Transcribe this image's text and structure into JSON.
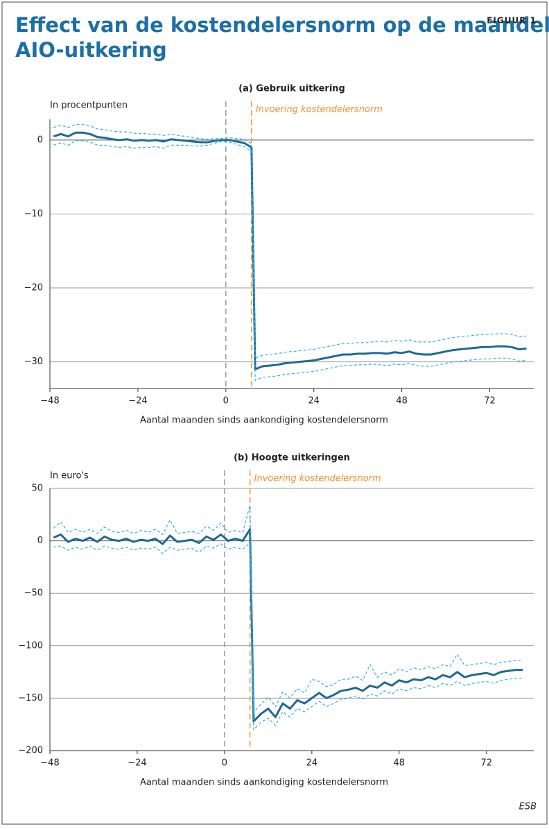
{
  "header": {
    "title": "Effect van de kostendelersnorm op de maandelijkse AIO-uitkering",
    "figure_label": "FIGUUR 1"
  },
  "chart_data": [
    {
      "type": "line",
      "title": "(a) Gebruik uitkering",
      "y_label": "In procentpunten",
      "x_label": "Aantal maanden sinds aankondiging kostendelersnorm",
      "xlim": [
        -48,
        84
      ],
      "xticks": [
        {
          "value": -48,
          "label": "−48"
        },
        {
          "value": -24,
          "label": "−24"
        },
        0,
        24,
        48,
        72
      ],
      "ylim": [
        -33.6,
        2.8
      ],
      "yticks": [
        {
          "value": -30,
          "label": "−30"
        },
        {
          "value": -20,
          "label": "−20"
        },
        {
          "value": -10,
          "label": "−10"
        },
        0
      ],
      "grid": true,
      "vlines": [
        {
          "x": 0,
          "color": "#999999"
        },
        {
          "x": 7,
          "color": "#f0912a",
          "label": "Invoering kostendelersnorm"
        }
      ],
      "x": [
        -47,
        -45,
        -43,
        -41,
        -39,
        -37,
        -35,
        -33,
        -31,
        -29,
        -27,
        -25,
        -23,
        -21,
        -19,
        -17,
        -15,
        -13,
        -11,
        -9,
        -7,
        -5,
        -3,
        -1,
        1,
        3,
        5,
        7,
        8,
        10,
        12,
        14,
        16,
        18,
        20,
        22,
        24,
        26,
        28,
        30,
        32,
        34,
        36,
        38,
        40,
        42,
        44,
        46,
        48,
        50,
        52,
        54,
        56,
        58,
        60,
        62,
        64,
        66,
        68,
        70,
        72,
        74,
        76,
        78,
        80,
        82
      ],
      "series": [
        {
          "color": "#1e6a93",
          "style": "solid",
          "values": [
            0.5,
            0.8,
            0.5,
            1.0,
            1.0,
            0.8,
            0.4,
            0.3,
            0.1,
            0.0,
            0.1,
            -0.1,
            0.0,
            -0.1,
            0.0,
            -0.2,
            0.1,
            0.0,
            -0.1,
            -0.2,
            -0.3,
            -0.3,
            -0.1,
            0.0,
            0.0,
            -0.2,
            -0.4,
            -1.0,
            -31.0,
            -30.6,
            -30.5,
            -30.4,
            -30.2,
            -30.1,
            -30.0,
            -29.9,
            -29.8,
            -29.6,
            -29.4,
            -29.2,
            -29.0,
            -29.0,
            -28.9,
            -28.9,
            -28.8,
            -28.8,
            -28.9,
            -28.7,
            -28.8,
            -28.6,
            -28.9,
            -29.0,
            -29.0,
            -28.8,
            -28.6,
            -28.4,
            -28.3,
            -28.2,
            -28.1,
            -28.0,
            -28.0,
            -27.9,
            -27.9,
            -28.0,
            -28.3,
            -28.2
          ]
        },
        {
          "color": "#2bb0e3",
          "style": "dashed",
          "values": [
            1.7,
            2.0,
            1.7,
            2.1,
            2.1,
            1.9,
            1.5,
            1.4,
            1.2,
            1.1,
            1.1,
            0.9,
            0.9,
            0.8,
            0.8,
            0.6,
            0.8,
            0.6,
            0.5,
            0.3,
            0.2,
            0.1,
            0.2,
            0.2,
            0.3,
            0.2,
            0.1,
            -0.5,
            -29.5,
            -29.1,
            -29.0,
            -28.9,
            -28.7,
            -28.6,
            -28.5,
            -28.4,
            -28.3,
            -28.1,
            -27.9,
            -27.7,
            -27.5,
            -27.5,
            -27.4,
            -27.4,
            -27.3,
            -27.2,
            -27.3,
            -27.1,
            -27.2,
            -27.0,
            -27.3,
            -27.3,
            -27.3,
            -27.1,
            -26.9,
            -26.7,
            -26.6,
            -26.5,
            -26.4,
            -26.3,
            -26.3,
            -26.2,
            -26.2,
            -26.3,
            -26.6,
            -26.5
          ]
        },
        {
          "color": "#2bb0e3",
          "style": "dashed",
          "values": [
            -0.7,
            -0.4,
            -0.7,
            -0.1,
            -0.1,
            -0.3,
            -0.7,
            -0.7,
            -0.9,
            -1.0,
            -0.9,
            -1.1,
            -1.0,
            -1.0,
            -0.9,
            -1.1,
            -0.7,
            -0.7,
            -0.7,
            -0.8,
            -0.8,
            -0.7,
            -0.4,
            -0.2,
            -0.3,
            -0.6,
            -0.9,
            -1.5,
            -32.5,
            -32.1,
            -32.0,
            -31.9,
            -31.7,
            -31.6,
            -31.5,
            -31.4,
            -31.3,
            -31.1,
            -30.9,
            -30.7,
            -30.5,
            -30.5,
            -30.4,
            -30.4,
            -30.3,
            -30.4,
            -30.5,
            -30.3,
            -30.4,
            -30.2,
            -30.5,
            -30.6,
            -30.6,
            -30.4,
            -30.2,
            -30.0,
            -29.9,
            -29.8,
            -29.7,
            -29.6,
            -29.6,
            -29.5,
            -29.5,
            -29.6,
            -29.9,
            -29.8
          ]
        }
      ]
    },
    {
      "type": "line",
      "title": "(b) Hoogte uitkeringen",
      "y_label": "In euro's",
      "x_label": "Aantal maanden sinds aankondiging kostendelersnorm",
      "xlim": [
        -48,
        85
      ],
      "xticks": [
        {
          "value": -48,
          "label": "−48"
        },
        {
          "value": -24,
          "label": "−24"
        },
        0,
        24,
        48,
        72
      ],
      "ylim": [
        -200,
        50
      ],
      "yticks": [
        {
          "value": -200,
          "label": "−200"
        },
        {
          "value": -150,
          "label": "−150"
        },
        {
          "value": -100,
          "label": "−100"
        },
        {
          "value": -50,
          "label": "−50"
        },
        0,
        50
      ],
      "grid": true,
      "vlines": [
        {
          "x": 0,
          "color": "#999999"
        },
        {
          "x": 7,
          "color": "#f0912a",
          "label": "Invoering kostendelersnorm"
        }
      ],
      "x": [
        -47,
        -45,
        -43,
        -41,
        -39,
        -37,
        -35,
        -33,
        -31,
        -29,
        -27,
        -25,
        -23,
        -21,
        -19,
        -17,
        -15,
        -13,
        -11,
        -9,
        -7,
        -5,
        -3,
        -1,
        1,
        3,
        5,
        7,
        8,
        10,
        12,
        14,
        16,
        18,
        20,
        22,
        24,
        26,
        28,
        30,
        32,
        34,
        36,
        38,
        40,
        42,
        44,
        46,
        48,
        50,
        52,
        54,
        56,
        58,
        60,
        62,
        64,
        66,
        68,
        70,
        72,
        74,
        76,
        78,
        80,
        82
      ],
      "series": [
        {
          "color": "#1e6a93",
          "style": "solid",
          "values": [
            3,
            6,
            -1,
            2,
            0,
            3,
            -1,
            4,
            1,
            0,
            2,
            -1,
            1,
            0,
            2,
            -3,
            5,
            -1,
            0,
            1,
            -2,
            4,
            1,
            6,
            0,
            2,
            0,
            11,
            -172,
            -165,
            -160,
            -168,
            -155,
            -160,
            -152,
            -155,
            -150,
            -145,
            -150,
            -147,
            -143,
            -142,
            -140,
            -143,
            -138,
            -140,
            -135,
            -138,
            -133,
            -135,
            -132,
            -133,
            -130,
            -132,
            -128,
            -130,
            -125,
            -130,
            -128,
            -127,
            -126,
            -128,
            -125,
            -124,
            -123,
            -123
          ]
        },
        {
          "color": "#2bb0e3",
          "style": "dashed",
          "values": [
            12,
            18,
            8,
            11,
            8,
            11,
            7,
            13,
            9,
            8,
            10,
            7,
            10,
            8,
            11,
            6,
            20,
            7,
            8,
            9,
            7,
            14,
            10,
            17,
            8,
            10,
            8,
            34,
            -163,
            -156,
            -149,
            -158,
            -144,
            -150,
            -141,
            -145,
            -132,
            -134,
            -139,
            -137,
            -132,
            -132,
            -129,
            -133,
            -118,
            -130,
            -125,
            -128,
            -122,
            -125,
            -121,
            -123,
            -120,
            -122,
            -118,
            -120,
            -108,
            -119,
            -118,
            -117,
            -116,
            -118,
            -116,
            -115,
            -114,
            -114
          ]
        },
        {
          "color": "#2bb0e3",
          "style": "dashed",
          "values": [
            -6,
            -5,
            -9,
            -6,
            -8,
            -5,
            -9,
            -5,
            -7,
            -8,
            -6,
            -9,
            -7,
            -8,
            -6,
            -12,
            -6,
            -9,
            -8,
            -7,
            -11,
            -5,
            -7,
            -3,
            -8,
            -6,
            -8,
            -2,
            -180,
            -173,
            -169,
            -176,
            -163,
            -168,
            -160,
            -163,
            -158,
            -153,
            -158,
            -155,
            -151,
            -150,
            -148,
            -151,
            -146,
            -148,
            -143,
            -146,
            -141,
            -143,
            -140,
            -141,
            -138,
            -140,
            -136,
            -138,
            -134,
            -138,
            -136,
            -135,
            -134,
            -136,
            -133,
            -132,
            -131,
            -131
          ]
        }
      ]
    }
  ],
  "footer": {
    "source": "ESB"
  }
}
